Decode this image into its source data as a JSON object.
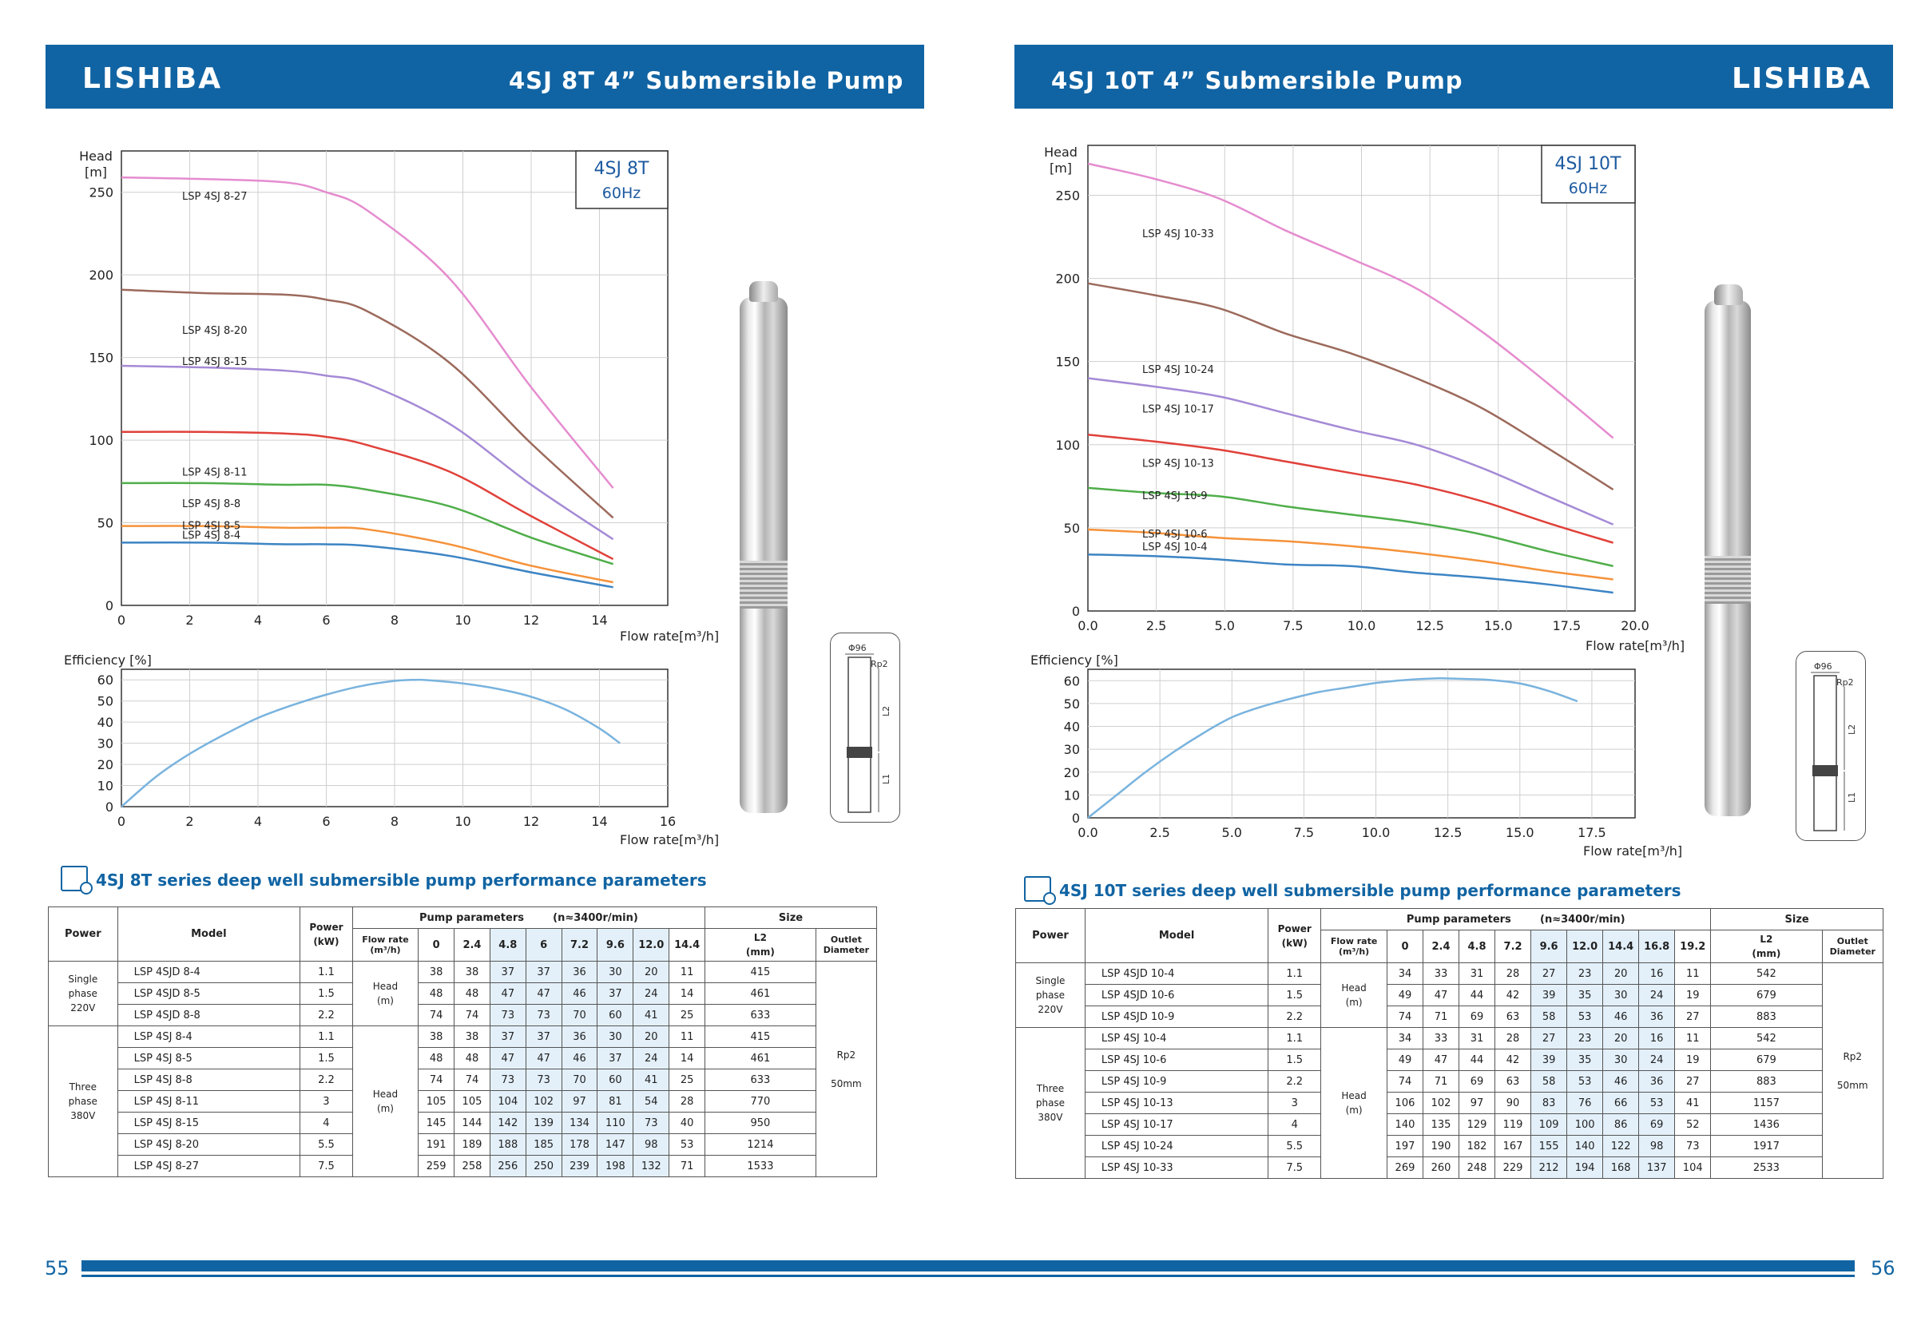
{
  "left": {
    "banner": {
      "logo": "LISHIBA",
      "title": "4SJ 8T 4”  Submersible Pump"
    },
    "page_number": "55",
    "head_chart_box": {
      "title": "4SJ 8T",
      "freq": "60Hz"
    },
    "series_title": "4SJ 8T series deep well submersible pump performance parameters",
    "dimension_labels": {
      "diameter": "Φ96",
      "thread": "Rp2",
      "l2": "L2",
      "l1": "L1"
    }
  },
  "right": {
    "banner": {
      "logo": "LISHIBA",
      "title": "4SJ 10T 4”  Submersible Pump"
    },
    "page_number": "56",
    "head_chart_box": {
      "title": "4SJ 10T",
      "freq": "60Hz"
    },
    "series_title": "4SJ 10T series deep well submersible pump performance parameters",
    "dimension_labels": {
      "diameter": "Φ96",
      "thread": "Rp2",
      "l2": "L2",
      "l1": "L1"
    }
  },
  "chart_data": [
    {
      "type": "line",
      "id": "head-8t",
      "ylabel": "Head\n[m]",
      "xlabel": "Flow rate[m³/h]",
      "xlim": [
        0,
        16
      ],
      "ylim": [
        0,
        275
      ],
      "xticks": [
        0,
        2,
        4,
        6,
        8,
        10,
        12,
        14
      ],
      "yticks": [
        0,
        50,
        100,
        150,
        200,
        250
      ],
      "grid": true,
      "series": [
        {
          "name": "LSP 4SJ 8-27",
          "color": "#e58ccf",
          "x": [
            0,
            2.4,
            4.8,
            6,
            7.2,
            9.6,
            12,
            14.4
          ],
          "y": [
            259,
            258,
            256,
            250,
            239,
            198,
            132,
            71
          ]
        },
        {
          "name": "LSP 4SJ 8-20",
          "color": "#9c6a5c",
          "x": [
            0,
            2.4,
            4.8,
            6,
            7.2,
            9.6,
            12,
            14.4
          ],
          "y": [
            191,
            189,
            188,
            185,
            178,
            147,
            98,
            53
          ]
        },
        {
          "name": "LSP 4SJ 8-15",
          "color": "#a58ad6",
          "x": [
            0,
            2.4,
            4.8,
            6,
            7.2,
            9.6,
            12,
            14.4
          ],
          "y": [
            145,
            144,
            142,
            139,
            134,
            110,
            73,
            40
          ]
        },
        {
          "name": "LSP 4SJ 8-11",
          "color": "#e0413a",
          "x": [
            0,
            2.4,
            4.8,
            6,
            7.2,
            9.6,
            12,
            14.4
          ],
          "y": [
            105,
            105,
            104,
            102,
            97,
            81,
            54,
            28
          ]
        },
        {
          "name": "LSP 4SJ 8-8",
          "color": "#4fae4a",
          "x": [
            0,
            2.4,
            4.8,
            6,
            7.2,
            9.6,
            12,
            14.4
          ],
          "y": [
            74,
            74,
            73,
            73,
            70,
            60,
            41,
            25
          ]
        },
        {
          "name": "LSP 4SJ 8-5",
          "color": "#f5923a",
          "x": [
            0,
            2.4,
            4.8,
            6,
            7.2,
            9.6,
            12,
            14.4
          ],
          "y": [
            48,
            48,
            47,
            47,
            46,
            37,
            24,
            14
          ]
        },
        {
          "name": "LSP 4SJ 8-4",
          "color": "#3c84c4",
          "x": [
            0,
            2.4,
            4.8,
            6,
            7.2,
            9.6,
            12,
            14.4
          ],
          "y": [
            38,
            38,
            37,
            37,
            36,
            30,
            20,
            11
          ]
        }
      ]
    },
    {
      "type": "line",
      "id": "eff-8t",
      "ylabel": "Efficiency [%]",
      "xlabel": "Flow rate[m³/h]",
      "xlim": [
        0,
        16
      ],
      "ylim": [
        0,
        65
      ],
      "xticks": [
        0,
        2,
        4,
        6,
        8,
        10,
        12,
        14,
        16
      ],
      "yticks": [
        0,
        10,
        20,
        30,
        40,
        50,
        60
      ],
      "grid": true,
      "series": [
        {
          "color": "#79b3de",
          "x": [
            0,
            1,
            2,
            3,
            4,
            5,
            6,
            7,
            8,
            8.6,
            9,
            10,
            11,
            12,
            13,
            14,
            14.6
          ],
          "y": [
            0,
            14,
            25,
            34,
            42,
            48,
            53,
            57,
            59.5,
            60,
            59.8,
            58.3,
            55.8,
            52,
            46,
            37,
            30
          ]
        }
      ]
    },
    {
      "type": "line",
      "id": "head-10t",
      "ylabel": "Head\n[m]",
      "xlabel": "Flow rate[m³/h]",
      "xlim": [
        0,
        20
      ],
      "ylim": [
        0,
        280
      ],
      "xticks": [
        0,
        2.5,
        5,
        7.5,
        10,
        12.5,
        15,
        17.5,
        20
      ],
      "xticklabels": [
        "0.0",
        "2.5",
        "5.0",
        "7.5",
        "10.0",
        "12.5",
        "15.0",
        "17.5",
        "20.0"
      ],
      "yticks": [
        0,
        50,
        100,
        150,
        200,
        250
      ],
      "grid": true,
      "series": [
        {
          "name": "LSP 4SJ 10-33",
          "color": "#e58ccf",
          "x": [
            0,
            2.4,
            4.8,
            7.2,
            9.6,
            12,
            14.4,
            16.8,
            19.2
          ],
          "y": [
            269,
            260,
            248,
            229,
            212,
            194,
            168,
            137,
            104
          ]
        },
        {
          "name": "LSP 4SJ 10-24",
          "color": "#9c6a5c",
          "x": [
            0,
            2.4,
            4.8,
            7.2,
            9.6,
            12,
            14.4,
            16.8,
            19.2
          ],
          "y": [
            197,
            190,
            182,
            167,
            155,
            140,
            122,
            98,
            73
          ]
        },
        {
          "name": "LSP 4SJ 10-17",
          "color": "#a58ad6",
          "x": [
            0,
            2.4,
            4.8,
            7.2,
            9.6,
            12,
            14.4,
            16.8,
            19.2
          ],
          "y": [
            140,
            135,
            129,
            119,
            109,
            100,
            86,
            69,
            52
          ]
        },
        {
          "name": "LSP 4SJ 10-13",
          "color": "#e0413a",
          "x": [
            0,
            2.4,
            4.8,
            7.2,
            9.6,
            12,
            14.4,
            16.8,
            19.2
          ],
          "y": [
            106,
            102,
            97,
            90,
            83,
            76,
            66,
            53,
            41
          ]
        },
        {
          "name": "LSP 4SJ 10-9",
          "color": "#4fae4a",
          "x": [
            0,
            2.4,
            4.8,
            7.2,
            9.6,
            12,
            14.4,
            16.8,
            19.2
          ],
          "y": [
            74,
            71,
            69,
            63,
            58,
            53,
            46,
            36,
            27
          ]
        },
        {
          "name": "LSP 4SJ 10-6",
          "color": "#f5923a",
          "x": [
            0,
            2.4,
            4.8,
            7.2,
            9.6,
            12,
            14.4,
            16.8,
            19.2
          ],
          "y": [
            49,
            47,
            44,
            42,
            39,
            35,
            30,
            24,
            19
          ]
        },
        {
          "name": "LSP 4SJ 10-4",
          "color": "#3c84c4",
          "x": [
            0,
            2.4,
            4.8,
            7.2,
            9.6,
            12,
            14.4,
            16.8,
            19.2
          ],
          "y": [
            34,
            33,
            31,
            28,
            27,
            23,
            20,
            16,
            11
          ]
        }
      ]
    },
    {
      "type": "line",
      "id": "eff-10t",
      "ylabel": "Efficiency [%]",
      "xlabel": "Flow rate[m³/h]",
      "xlim": [
        0,
        19
      ],
      "ylim": [
        0,
        65
      ],
      "xticks": [
        0,
        2.5,
        5,
        7.5,
        10,
        12.5,
        15,
        17.5
      ],
      "xticklabels": [
        "0.0",
        "2.5",
        "5.0",
        "7.5",
        "10.0",
        "12.5",
        "15.0",
        "17.5"
      ],
      "yticks": [
        0,
        10,
        20,
        30,
        40,
        50,
        60
      ],
      "grid": true,
      "series": [
        {
          "color": "#79b3de",
          "x": [
            0,
            1,
            2,
            3,
            4,
            5,
            6,
            7,
            8,
            9,
            10,
            11,
            12,
            12.5,
            13,
            14,
            15,
            16,
            17
          ],
          "y": [
            0,
            10,
            20,
            29,
            37,
            44,
            48.5,
            52,
            55,
            57,
            59,
            60.3,
            61,
            61,
            60.8,
            60.3,
            58.8,
            55.5,
            51
          ]
        }
      ]
    }
  ],
  "table_8t": {
    "headers": {
      "power": "Power",
      "model": "Model",
      "power_kw": "Power\n(kW)",
      "pump_params": "Pump parameters        (n≈3400r/min)",
      "size": "Size",
      "flow_rate": "Flow rate\n(m³/h)",
      "l2": "L2\n(mm)",
      "outlet": "Outlet\nDiameter",
      "flows": [
        "0",
        "2.4",
        "4.8",
        "6",
        "7.2",
        "9.6",
        "12.0",
        "14.4"
      ]
    },
    "single_phase_label": "Single\nphase\n220V",
    "three_phase_label": "Three\nphase\n380V",
    "head_label": "Head\n(m)",
    "outlet_value": "Rp2\n\n50mm",
    "single": [
      {
        "model": "LSP 4SJD 8-4",
        "kw": "1.1",
        "heads": [
          "38",
          "38",
          "37",
          "37",
          "36",
          "30",
          "20",
          "11"
        ],
        "l2": "415"
      },
      {
        "model": "LSP 4SJD 8-5",
        "kw": "1.5",
        "heads": [
          "48",
          "48",
          "47",
          "47",
          "46",
          "37",
          "24",
          "14"
        ],
        "l2": "461"
      },
      {
        "model": "LSP 4SJD 8-8",
        "kw": "2.2",
        "heads": [
          "74",
          "74",
          "73",
          "73",
          "70",
          "60",
          "41",
          "25"
        ],
        "l2": "633"
      }
    ],
    "three": [
      {
        "model": "LSP 4SJ 8-4",
        "kw": "1.1",
        "heads": [
          "38",
          "38",
          "37",
          "37",
          "36",
          "30",
          "20",
          "11"
        ],
        "l2": "415"
      },
      {
        "model": "LSP 4SJ 8-5",
        "kw": "1.5",
        "heads": [
          "48",
          "48",
          "47",
          "47",
          "46",
          "37",
          "24",
          "14"
        ],
        "l2": "461"
      },
      {
        "model": "LSP 4SJ 8-8",
        "kw": "2.2",
        "heads": [
          "74",
          "74",
          "73",
          "73",
          "70",
          "60",
          "41",
          "25"
        ],
        "l2": "633"
      },
      {
        "model": "LSP 4SJ 8-11",
        "kw": "3",
        "heads": [
          "105",
          "105",
          "104",
          "102",
          "97",
          "81",
          "54",
          "28"
        ],
        "l2": "770"
      },
      {
        "model": "LSP 4SJ 8-15",
        "kw": "4",
        "heads": [
          "145",
          "144",
          "142",
          "139",
          "134",
          "110",
          "73",
          "40"
        ],
        "l2": "950"
      },
      {
        "model": "LSP 4SJ 8-20",
        "kw": "5.5",
        "heads": [
          "191",
          "189",
          "188",
          "185",
          "178",
          "147",
          "98",
          "53"
        ],
        "l2": "1214"
      },
      {
        "model": "LSP 4SJ 8-27",
        "kw": "7.5",
        "heads": [
          "259",
          "258",
          "256",
          "250",
          "239",
          "198",
          "132",
          "71"
        ],
        "l2": "1533"
      }
    ]
  },
  "table_10t": {
    "headers": {
      "power": "Power",
      "model": "Model",
      "power_kw": "Power\n(kW)",
      "pump_params": "Pump parameters        (n≈3400r/min)",
      "size": "Size",
      "flow_rate": "Flow rate\n(m³/h)",
      "l2": "L2\n(mm)",
      "outlet": "Outlet\nDiameter",
      "flows": [
        "0",
        "2.4",
        "4.8",
        "7.2",
        "9.6",
        "12.0",
        "14.4",
        "16.8",
        "19.2"
      ]
    },
    "single_phase_label": "Single\nphase\n220V",
    "three_phase_label": "Three\nphase\n380V",
    "head_label": "Head\n(m)",
    "outlet_value": "Rp2\n\n50mm",
    "single": [
      {
        "model": "LSP 4SJD 10-4",
        "kw": "1.1",
        "heads": [
          "34",
          "33",
          "31",
          "28",
          "27",
          "23",
          "20",
          "16",
          "11"
        ],
        "l2": "542"
      },
      {
        "model": "LSP 4SJD 10-6",
        "kw": "1.5",
        "heads": [
          "49",
          "47",
          "44",
          "42",
          "39",
          "35",
          "30",
          "24",
          "19"
        ],
        "l2": "679"
      },
      {
        "model": "LSP 4SJD 10-9",
        "kw": "2.2",
        "heads": [
          "74",
          "71",
          "69",
          "63",
          "58",
          "53",
          "46",
          "36",
          "27"
        ],
        "l2": "883"
      }
    ],
    "three": [
      {
        "model": "LSP 4SJ 10-4",
        "kw": "1.1",
        "heads": [
          "34",
          "33",
          "31",
          "28",
          "27",
          "23",
          "20",
          "16",
          "11"
        ],
        "l2": "542"
      },
      {
        "model": "LSP 4SJ 10-6",
        "kw": "1.5",
        "heads": [
          "49",
          "47",
          "44",
          "42",
          "39",
          "35",
          "30",
          "24",
          "19"
        ],
        "l2": "679"
      },
      {
        "model": "LSP 4SJ 10-9",
        "kw": "2.2",
        "heads": [
          "74",
          "71",
          "69",
          "63",
          "58",
          "53",
          "46",
          "36",
          "27"
        ],
        "l2": "883"
      },
      {
        "model": "LSP 4SJ 10-13",
        "kw": "3",
        "heads": [
          "106",
          "102",
          "97",
          "90",
          "83",
          "76",
          "66",
          "53",
          "41"
        ],
        "l2": "1157"
      },
      {
        "model": "LSP 4SJ 10-17",
        "kw": "4",
        "heads": [
          "140",
          "135",
          "129",
          "119",
          "109",
          "100",
          "86",
          "69",
          "52"
        ],
        "l2": "1436"
      },
      {
        "model": "LSP 4SJ 10-24",
        "kw": "5.5",
        "heads": [
          "197",
          "190",
          "182",
          "167",
          "155",
          "140",
          "122",
          "98",
          "73"
        ],
        "l2": "1917"
      },
      {
        "model": "LSP 4SJ 10-33",
        "kw": "7.5",
        "heads": [
          "269",
          "260",
          "248",
          "229",
          "212",
          "194",
          "168",
          "137",
          "104"
        ],
        "l2": "2533"
      }
    ]
  }
}
